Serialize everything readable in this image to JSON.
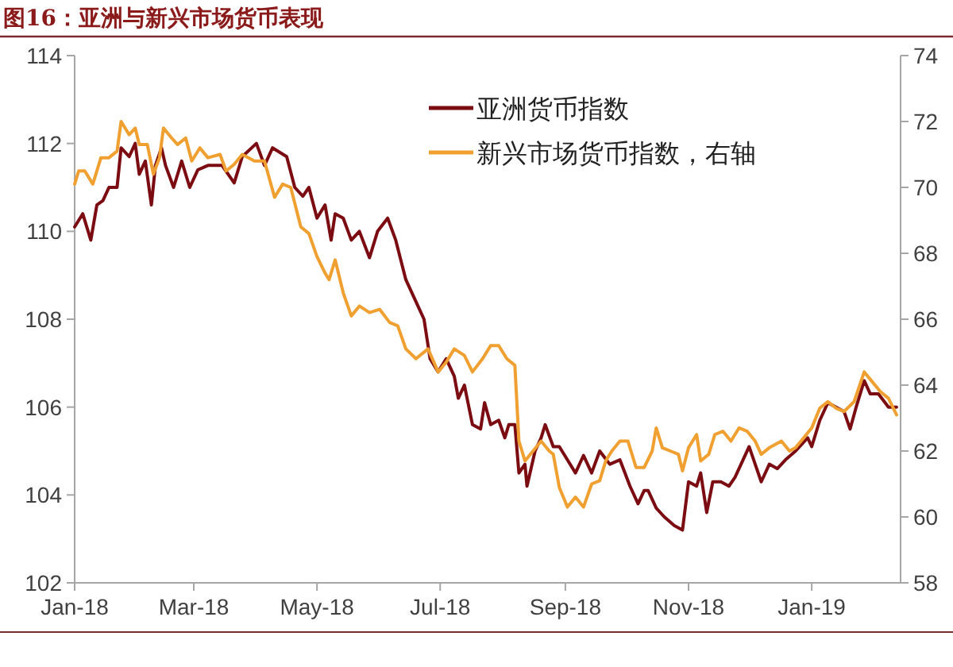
{
  "chart_data": {
    "type": "line",
    "title": "图16：亚洲与新兴市场货币表现",
    "legend": "top right",
    "xlim": [
      "2018-01-01",
      "2019-02-14"
    ],
    "xticks": [
      {
        "value": "2018-01-01",
        "label": "Jan-18"
      },
      {
        "value": "2018-03-01",
        "label": "Mar-18"
      },
      {
        "value": "2018-05-01",
        "label": "May-18"
      },
      {
        "value": "2018-07-01",
        "label": "Jul-18"
      },
      {
        "value": "2018-09-01",
        "label": "Sep-18"
      },
      {
        "value": "2018-11-01",
        "label": "Nov-18"
      },
      {
        "value": "2019-01-01",
        "label": "Jan-19"
      }
    ],
    "ylim": [
      102,
      114
    ],
    "yticks": [
      102,
      104,
      106,
      108,
      110,
      112,
      114
    ],
    "y2lim": [
      58,
      74
    ],
    "y2ticks": [
      58,
      60,
      62,
      64,
      66,
      68,
      70,
      72,
      74
    ],
    "series": [
      {
        "name": "亚洲货币指数",
        "color": "#7b0c12",
        "x": [
          "2018-01-01",
          "2018-01-05",
          "2018-01-09",
          "2018-01-12",
          "2018-01-15",
          "2018-01-18",
          "2018-01-22",
          "2018-01-24",
          "2018-01-28",
          "2018-01-31",
          "2018-02-02",
          "2018-02-05",
          "2018-02-08",
          "2018-02-10",
          "2018-02-13",
          "2018-02-15",
          "2018-02-19",
          "2018-02-23",
          "2018-02-27",
          "2018-03-03",
          "2018-03-08",
          "2018-03-15",
          "2018-03-21",
          "2018-03-25",
          "2018-04-01",
          "2018-04-05",
          "2018-04-09",
          "2018-04-16",
          "2018-04-20",
          "2018-04-24",
          "2018-04-27",
          "2018-05-01",
          "2018-05-05",
          "2018-05-08",
          "2018-05-10",
          "2018-05-14",
          "2018-05-18",
          "2018-05-22",
          "2018-05-27",
          "2018-05-31",
          "2018-06-05",
          "2018-06-09",
          "2018-06-14",
          "2018-06-19",
          "2018-06-23",
          "2018-06-26",
          "2018-06-30",
          "2018-07-04",
          "2018-07-08",
          "2018-07-10",
          "2018-07-13",
          "2018-07-17",
          "2018-07-21",
          "2018-07-23",
          "2018-07-26",
          "2018-07-30",
          "2018-08-02",
          "2018-08-04",
          "2018-08-07",
          "2018-08-09",
          "2018-08-12",
          "2018-08-13",
          "2018-08-17",
          "2018-08-20",
          "2018-08-22",
          "2018-08-26",
          "2018-08-29",
          "2018-09-02",
          "2018-09-06",
          "2018-09-10",
          "2018-09-14",
          "2018-09-18",
          "2018-09-23",
          "2018-09-28",
          "2018-10-03",
          "2018-10-07",
          "2018-10-10",
          "2018-10-12",
          "2018-10-16",
          "2018-10-20",
          "2018-10-25",
          "2018-10-29",
          "2018-11-01",
          "2018-11-05",
          "2018-11-07",
          "2018-11-10",
          "2018-11-13",
          "2018-11-17",
          "2018-11-21",
          "2018-11-24",
          "2018-11-27",
          "2018-12-01",
          "2018-12-04",
          "2018-12-07",
          "2018-12-11",
          "2018-12-15",
          "2018-12-19",
          "2018-12-24",
          "2018-12-30",
          "2019-01-01",
          "2019-01-05",
          "2019-01-09",
          "2019-01-13",
          "2019-01-17",
          "2019-01-20",
          "2019-01-23",
          "2019-01-27",
          "2019-01-30",
          "2019-02-03",
          "2019-02-08",
          "2019-02-12"
        ],
        "values": [
          110.1,
          110.4,
          109.8,
          110.6,
          110.7,
          111.0,
          111.0,
          111.9,
          111.7,
          112.0,
          111.3,
          111.6,
          110.6,
          111.5,
          111.9,
          111.5,
          111.0,
          111.6,
          111.0,
          111.4,
          111.5,
          111.5,
          111.1,
          111.7,
          112.0,
          111.5,
          111.9,
          111.7,
          111.0,
          110.8,
          111.0,
          110.3,
          110.6,
          109.8,
          110.4,
          110.3,
          109.8,
          110.0,
          109.4,
          110.0,
          110.3,
          109.8,
          108.9,
          108.4,
          108.0,
          107.1,
          106.8,
          107.1,
          106.7,
          106.2,
          106.5,
          105.6,
          105.5,
          106.1,
          105.6,
          105.7,
          105.3,
          105.6,
          105.6,
          104.5,
          104.7,
          104.2,
          105.0,
          105.3,
          105.6,
          105.1,
          105.1,
          104.8,
          104.5,
          104.9,
          104.5,
          105.0,
          104.7,
          104.8,
          104.2,
          103.8,
          104.1,
          104.1,
          103.7,
          103.5,
          103.3,
          103.2,
          104.3,
          104.2,
          104.5,
          103.6,
          104.3,
          104.3,
          104.2,
          104.4,
          104.7,
          105.1,
          104.7,
          104.3,
          104.7,
          104.6,
          104.8,
          105.0,
          105.3,
          105.1,
          105.7,
          106.1,
          106.0,
          105.9,
          105.5,
          106.0,
          106.6,
          106.3,
          106.3,
          106.0,
          106.0
        ]
      },
      {
        "name": "新兴市场货币指数，右轴",
        "color": "#f0a030",
        "axis": "y2",
        "x": [
          "2018-01-01",
          "2018-01-03",
          "2018-01-06",
          "2018-01-10",
          "2018-01-14",
          "2018-01-18",
          "2018-01-22",
          "2018-01-24",
          "2018-01-28",
          "2018-01-31",
          "2018-02-02",
          "2018-02-06",
          "2018-02-09",
          "2018-02-12",
          "2018-02-14",
          "2018-02-18",
          "2018-02-21",
          "2018-02-25",
          "2018-02-28",
          "2018-03-04",
          "2018-03-08",
          "2018-03-14",
          "2018-03-17",
          "2018-03-21",
          "2018-03-25",
          "2018-03-31",
          "2018-04-05",
          "2018-04-10",
          "2018-04-14",
          "2018-04-18",
          "2018-04-23",
          "2018-04-27",
          "2018-05-01",
          "2018-05-05",
          "2018-05-07",
          "2018-05-10",
          "2018-05-14",
          "2018-05-18",
          "2018-05-22",
          "2018-05-27",
          "2018-06-01",
          "2018-06-06",
          "2018-06-10",
          "2018-06-14",
          "2018-06-19",
          "2018-06-25",
          "2018-06-30",
          "2018-07-04",
          "2018-07-08",
          "2018-07-13",
          "2018-07-17",
          "2018-07-22",
          "2018-07-26",
          "2018-07-30",
          "2018-08-03",
          "2018-08-07",
          "2018-08-09",
          "2018-08-12",
          "2018-08-16",
          "2018-08-20",
          "2018-08-24",
          "2018-08-26",
          "2018-08-29",
          "2018-09-02",
          "2018-09-06",
          "2018-09-10",
          "2018-09-14",
          "2018-09-18",
          "2018-09-21",
          "2018-09-24",
          "2018-09-28",
          "2018-10-02",
          "2018-10-06",
          "2018-10-10",
          "2018-10-14",
          "2018-10-16",
          "2018-10-19",
          "2018-10-23",
          "2018-10-27",
          "2018-10-29",
          "2018-11-01",
          "2018-11-05",
          "2018-11-07",
          "2018-11-11",
          "2018-11-14",
          "2018-11-18",
          "2018-11-22",
          "2018-11-26",
          "2018-11-30",
          "2018-12-04",
          "2018-12-07",
          "2018-12-11",
          "2018-12-17",
          "2018-12-21",
          "2018-12-24",
          "2018-12-28",
          "2019-01-01",
          "2019-01-05",
          "2019-01-09",
          "2019-01-13",
          "2019-01-17",
          "2019-01-22",
          "2019-01-27",
          "2019-01-31",
          "2019-02-04",
          "2019-02-08",
          "2019-02-12"
        ],
        "values": [
          70.1,
          70.5,
          70.5,
          70.1,
          70.9,
          70.9,
          71.1,
          72.0,
          71.6,
          71.8,
          71.3,
          71.3,
          70.4,
          70.9,
          71.8,
          71.5,
          71.3,
          71.5,
          70.8,
          71.2,
          70.9,
          71.0,
          70.5,
          70.7,
          71.0,
          70.8,
          70.8,
          69.7,
          70.1,
          70.0,
          68.8,
          68.6,
          67.9,
          67.4,
          67.2,
          67.8,
          66.8,
          66.1,
          66.4,
          66.2,
          66.3,
          65.9,
          65.8,
          65.1,
          64.8,
          65.1,
          64.4,
          64.7,
          65.1,
          64.9,
          64.4,
          64.8,
          65.2,
          65.2,
          64.8,
          64.6,
          62.3,
          61.7,
          62.0,
          62.3,
          62.0,
          61.9,
          60.9,
          60.3,
          60.6,
          60.3,
          61.0,
          61.1,
          61.7,
          62.0,
          62.3,
          62.3,
          61.5,
          61.5,
          62.0,
          62.7,
          62.1,
          62.0,
          61.9,
          61.4,
          62.1,
          62.5,
          61.7,
          61.9,
          62.5,
          62.6,
          62.3,
          62.7,
          62.6,
          62.3,
          61.9,
          62.1,
          62.3,
          62.0,
          62.1,
          62.4,
          62.7,
          63.3,
          63.5,
          63.3,
          63.2,
          63.5,
          64.4,
          64.1,
          63.8,
          63.6,
          63.1
        ]
      }
    ]
  }
}
